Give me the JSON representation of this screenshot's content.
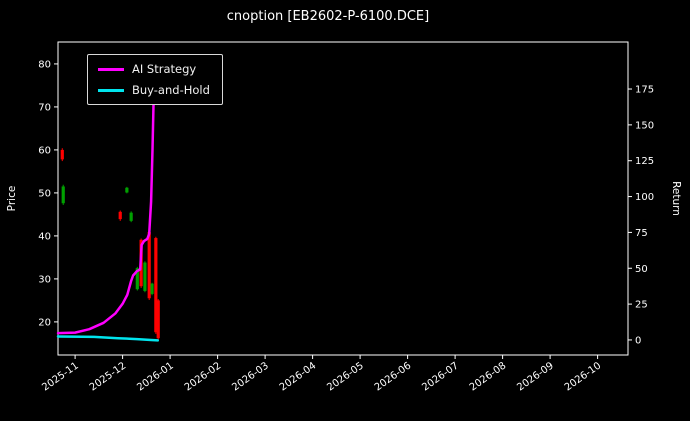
{
  "title": "cnoption [EB2602-P-6100.DCE]",
  "chart_data": {
    "type": "candlestick_line",
    "title": "cnoption [EB2602-P-6100.DCE]",
    "x_axis": {
      "range": [
        -0.36,
        11.64
      ],
      "ticks": [
        {
          "pos": 0,
          "label": "2025-11"
        },
        {
          "pos": 1,
          "label": "2025-12"
        },
        {
          "pos": 2,
          "label": "2026-01"
        },
        {
          "pos": 3,
          "label": "2026-02"
        },
        {
          "pos": 4,
          "label": "2026-03"
        },
        {
          "pos": 5,
          "label": "2026-04"
        },
        {
          "pos": 6,
          "label": "2026-05"
        },
        {
          "pos": 7,
          "label": "2026-06"
        },
        {
          "pos": 8,
          "label": "2026-07"
        },
        {
          "pos": 9,
          "label": "2026-08"
        },
        {
          "pos": 10,
          "label": "2026-09"
        },
        {
          "pos": 11,
          "label": "2026-10"
        }
      ]
    },
    "y_left": {
      "label": "Price",
      "ticks": [
        20,
        30,
        40,
        50,
        60,
        70,
        80
      ],
      "range": [
        12.3,
        85.1
      ]
    },
    "y_right": {
      "label": "Return",
      "ticks": [
        0,
        25,
        50,
        75,
        100,
        125,
        150,
        175
      ],
      "range": [
        -10.5,
        207.8
      ]
    },
    "colors": {
      "background": "#000000",
      "foreground": "#ffffff",
      "up": "#00a000",
      "down": "#ff0000"
    },
    "legend": [
      {
        "label": "AI Strategy",
        "color": "#ff00ff"
      },
      {
        "label": "Buy-and-Hold",
        "color": "#00e5ee"
      }
    ],
    "candles": [
      [
        -0.27,
        60.0,
        60.4,
        57.4,
        57.8
      ],
      [
        -0.25,
        47.6,
        51.9,
        47.2,
        51.5
      ],
      [
        0.95,
        45.6,
        45.9,
        43.5,
        43.9
      ],
      [
        1.09,
        50.1,
        51.4,
        49.9,
        51.2
      ],
      [
        1.18,
        43.5,
        45.7,
        43.2,
        45.4
      ],
      [
        1.31,
        27.6,
        32.8,
        27.3,
        32.5
      ],
      [
        1.39,
        39.1,
        39.4,
        27.9,
        28.3
      ],
      [
        1.47,
        27.2,
        34.1,
        26.9,
        33.8
      ],
      [
        1.56,
        40.9,
        41.2,
        25.1,
        25.5
      ],
      [
        1.62,
        26.5,
        29.1,
        26.2,
        28.9
      ],
      [
        1.7,
        39.5,
        39.8,
        17.2,
        17.6
      ],
      [
        1.75,
        25.0,
        25.3,
        15.8,
        16.2
      ]
    ],
    "series": [
      {
        "name": "AI Strategy",
        "color": "#ff00ff",
        "width": 2.5,
        "points": [
          [
            -0.36,
            17.4
          ],
          [
            0.0,
            17.5
          ],
          [
            0.3,
            18.3
          ],
          [
            0.6,
            19.8
          ],
          [
            0.85,
            22.0
          ],
          [
            1.0,
            24.2
          ],
          [
            1.1,
            26.3
          ],
          [
            1.18,
            29.5
          ],
          [
            1.22,
            30.8
          ],
          [
            1.3,
            31.8
          ],
          [
            1.37,
            32.2
          ],
          [
            1.4,
            37.9
          ],
          [
            1.45,
            38.8
          ],
          [
            1.52,
            39.3
          ],
          [
            1.56,
            40.5
          ],
          [
            1.6,
            48.0
          ],
          [
            1.63,
            60.0
          ],
          [
            1.65,
            70.5
          ],
          [
            1.68,
            71.3
          ]
        ]
      },
      {
        "name": "Buy-and-Hold",
        "color": "#00e5ee",
        "width": 2.5,
        "points": [
          [
            -0.36,
            16.6
          ],
          [
            0.4,
            16.5
          ],
          [
            0.9,
            16.2
          ],
          [
            1.3,
            16.0
          ],
          [
            1.6,
            15.8
          ],
          [
            1.74,
            15.7
          ]
        ]
      }
    ]
  }
}
